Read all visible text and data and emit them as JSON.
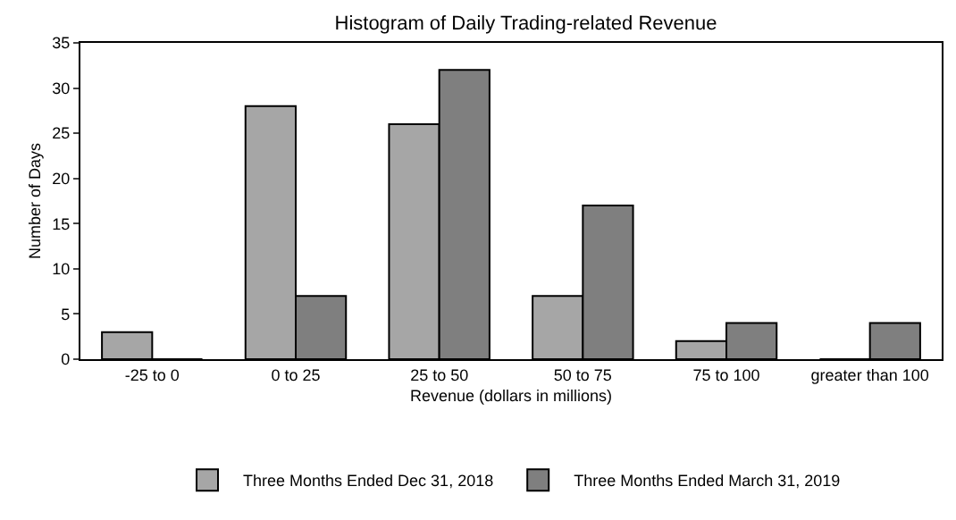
{
  "chart_data": {
    "type": "bar",
    "title": "Histogram of Daily Trading-related Revenue",
    "xlabel": "Revenue (dollars in millions)",
    "ylabel": "Number of Days",
    "categories": [
      "-25 to 0",
      "0 to 25",
      "25 to 50",
      "50 to 75",
      "75 to 100",
      "greater than 100"
    ],
    "series": [
      {
        "name": "Three Months Ended Dec 31, 2018",
        "color": "#a6a6a6",
        "values": [
          3,
          28,
          26,
          7,
          2,
          0
        ]
      },
      {
        "name": "Three Months Ended March 31, 2019",
        "color": "#7f7f7f",
        "values": [
          0,
          7,
          32,
          17,
          4,
          4
        ]
      }
    ],
    "ylim": [
      0,
      35
    ],
    "yticks": [
      0,
      5,
      10,
      15,
      20,
      25,
      30,
      35
    ],
    "grid": false,
    "legend": "bottom"
  }
}
